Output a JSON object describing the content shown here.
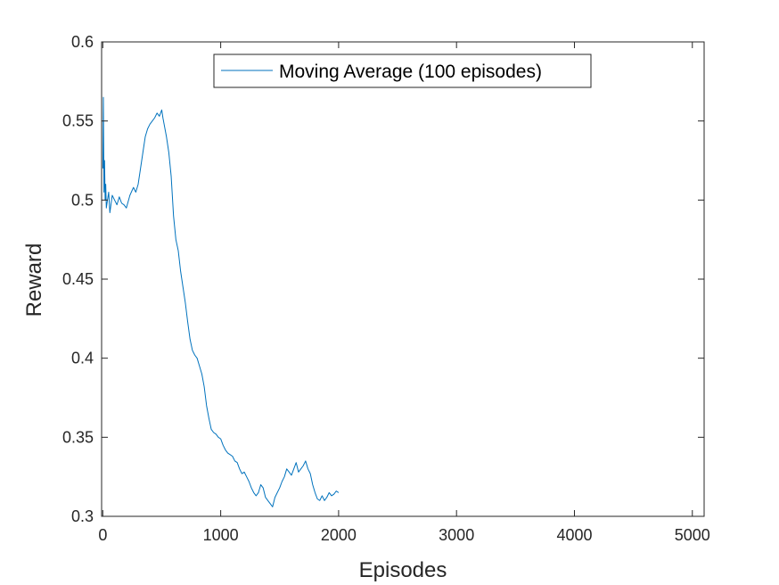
{
  "chart_data": {
    "type": "line",
    "title": "",
    "xlabel": "Episodes",
    "ylabel": "Reward",
    "xlim": [
      -10,
      5100
    ],
    "ylim": [
      0.3,
      0.6
    ],
    "xticks": [
      0,
      1000,
      2000,
      3000,
      4000,
      5000
    ],
    "xtick_labels": [
      "0",
      "1000",
      "2000",
      "3000",
      "4000",
      "5000"
    ],
    "yticks": [
      0.3,
      0.35,
      0.4,
      0.45,
      0.5,
      0.55,
      0.6
    ],
    "ytick_labels": [
      "0.3",
      "0.35",
      "0.4",
      "0.45",
      "0.5",
      "0.55",
      "0.6"
    ],
    "grid": false,
    "legend_position": "top-center",
    "series": [
      {
        "name": "Moving Average (100 episodes)",
        "color": "#0072BD",
        "x": [
          1,
          5,
          10,
          15,
          20,
          25,
          30,
          40,
          50,
          60,
          80,
          100,
          120,
          140,
          160,
          180,
          200,
          230,
          260,
          280,
          300,
          320,
          340,
          360,
          380,
          400,
          420,
          440,
          460,
          480,
          500,
          510,
          520,
          540,
          560,
          580,
          600,
          620,
          640,
          660,
          680,
          700,
          720,
          740,
          760,
          780,
          800,
          820,
          840,
          860,
          880,
          900,
          920,
          940,
          960,
          980,
          1000,
          1020,
          1040,
          1060,
          1080,
          1100,
          1120,
          1140,
          1160,
          1180,
          1200,
          1220,
          1240,
          1260,
          1280,
          1300,
          1320,
          1340,
          1360,
          1380,
          1400,
          1420,
          1440,
          1460,
          1480,
          1500,
          1520,
          1540,
          1560,
          1580,
          1600,
          1620,
          1640,
          1660,
          1680,
          1700,
          1720,
          1740,
          1760,
          1780,
          1800,
          1820,
          1840,
          1860,
          1880,
          1900,
          1920,
          1940,
          1960,
          1980,
          2000
        ],
        "y": [
          0.52,
          0.565,
          0.505,
          0.525,
          0.5,
          0.51,
          0.495,
          0.5,
          0.505,
          0.492,
          0.503,
          0.5,
          0.497,
          0.502,
          0.498,
          0.497,
          0.495,
          0.503,
          0.508,
          0.505,
          0.51,
          0.52,
          0.53,
          0.54,
          0.545,
          0.548,
          0.55,
          0.552,
          0.555,
          0.553,
          0.557,
          0.552,
          0.548,
          0.54,
          0.53,
          0.515,
          0.49,
          0.475,
          0.468,
          0.455,
          0.445,
          0.435,
          0.423,
          0.412,
          0.405,
          0.402,
          0.4,
          0.395,
          0.39,
          0.382,
          0.37,
          0.362,
          0.355,
          0.353,
          0.352,
          0.35,
          0.349,
          0.345,
          0.342,
          0.34,
          0.339,
          0.338,
          0.335,
          0.334,
          0.33,
          0.327,
          0.328,
          0.325,
          0.322,
          0.318,
          0.315,
          0.313,
          0.315,
          0.32,
          0.318,
          0.312,
          0.31,
          0.308,
          0.306,
          0.312,
          0.315,
          0.318,
          0.322,
          0.325,
          0.33,
          0.328,
          0.326,
          0.33,
          0.334,
          0.328,
          0.33,
          0.332,
          0.335,
          0.33,
          0.327,
          0.32,
          0.315,
          0.311,
          0.31,
          0.313,
          0.31,
          0.312,
          0.315,
          0.313,
          0.314,
          0.316,
          0.315
        ]
      }
    ]
  }
}
